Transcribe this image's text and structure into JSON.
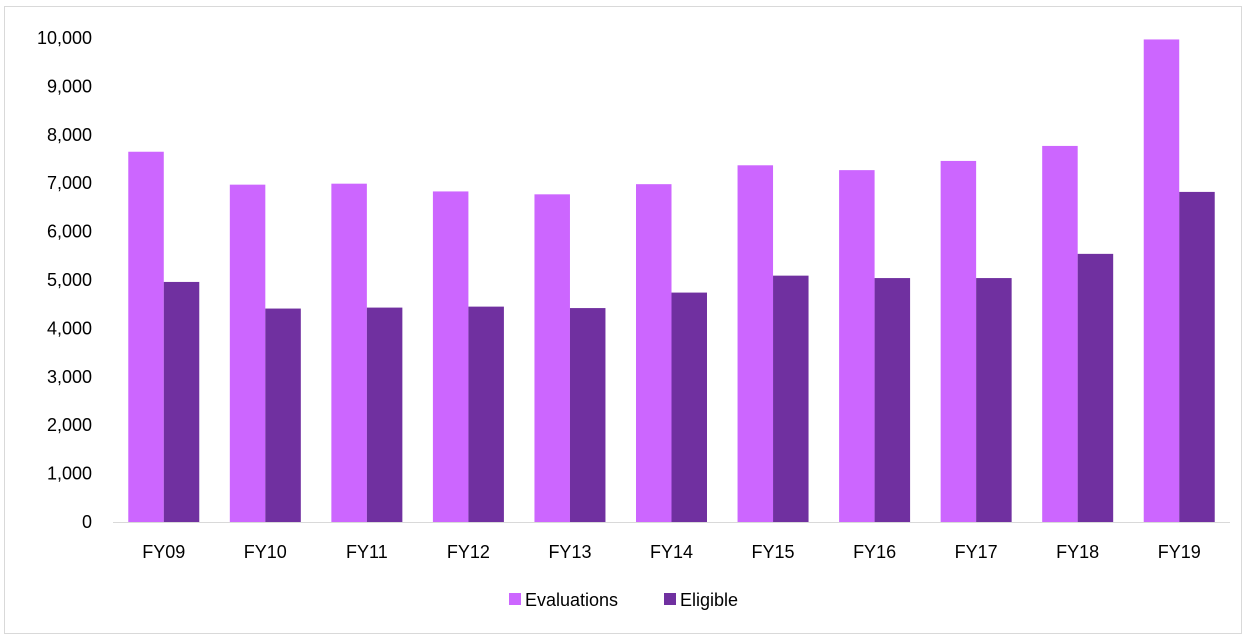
{
  "chart_data": {
    "type": "bar",
    "categories": [
      "FY09",
      "FY10",
      "FY11",
      "FY12",
      "FY13",
      "FY14",
      "FY15",
      "FY16",
      "FY17",
      "FY18",
      "FY19"
    ],
    "series": [
      {
        "name": "Evaluations",
        "color": "#cc66ff",
        "values": [
          7650,
          6970,
          6990,
          6830,
          6770,
          6980,
          7370,
          7270,
          7460,
          7770,
          9970
        ]
      },
      {
        "name": "Eligible",
        "color": "#7030a0",
        "values": [
          4960,
          4410,
          4430,
          4450,
          4420,
          4740,
          5090,
          5040,
          5040,
          5540,
          6820
        ]
      }
    ],
    "ylim": [
      0,
      10000
    ],
    "yticks": [
      "0",
      "1,000",
      "2,000",
      "3,000",
      "4,000",
      "5,000",
      "6,000",
      "7,000",
      "8,000",
      "9,000",
      "10,000"
    ],
    "ytick_values": [
      0,
      1000,
      2000,
      3000,
      4000,
      5000,
      6000,
      7000,
      8000,
      9000,
      10000
    ],
    "grid": false,
    "legend_position": "bottom-center"
  }
}
